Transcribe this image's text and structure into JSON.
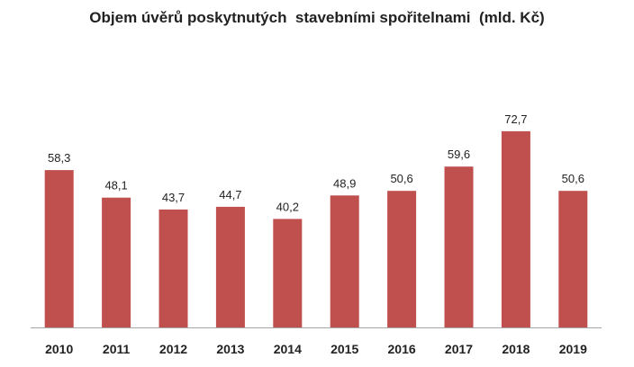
{
  "chart_data": {
    "type": "bar",
    "title": "Objem úvěrů poskytnutých  stavebními spořitelnami  (mld. Kč)",
    "categories": [
      "2010",
      "2011",
      "2012",
      "2013",
      "2014",
      "2015",
      "2016",
      "2017",
      "2018",
      "2019"
    ],
    "series": [
      {
        "values": [
          58.3,
          48.1,
          43.7,
          44.7,
          40.2,
          48.9,
          50.6,
          59.6,
          72.7,
          50.6
        ],
        "labels": [
          "58,3",
          "48,1",
          "43,7",
          "44,7",
          "40,2",
          "48,9",
          "50,6",
          "59,6",
          "72,7",
          "50,6"
        ],
        "color": "#c0504d"
      }
    ],
    "xlabel": "",
    "ylabel": "",
    "ylim": [
      0,
      80
    ],
    "grid": false,
    "legend": "none",
    "colors": {
      "bar": "#c0504d",
      "axis": "#a6a6a6",
      "text": "#222222"
    }
  }
}
